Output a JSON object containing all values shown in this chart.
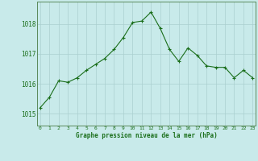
{
  "x": [
    0,
    1,
    2,
    3,
    4,
    5,
    6,
    7,
    8,
    9,
    10,
    11,
    12,
    13,
    14,
    15,
    16,
    17,
    18,
    19,
    20,
    21,
    22,
    23
  ],
  "y": [
    1015.2,
    1015.55,
    1016.1,
    1016.05,
    1016.2,
    1016.45,
    1016.65,
    1016.85,
    1017.15,
    1017.55,
    1018.05,
    1018.1,
    1018.4,
    1017.85,
    1017.15,
    1016.75,
    1017.2,
    1016.95,
    1016.6,
    1016.55,
    1016.55,
    1016.2,
    1016.45,
    1016.2
  ],
  "line_color": "#1a6e1a",
  "marker": "+",
  "marker_size": 3,
  "marker_lw": 0.8,
  "background_color": "#c8eaea",
  "grid_color": "#aacfcf",
  "xlabel": "Graphe pression niveau de la mer (hPa)",
  "xlabel_color": "#1a6e1a",
  "tick_color": "#1a6e1a",
  "spine_color": "#5a8a5a",
  "ylabel_ticks": [
    1015,
    1016,
    1017,
    1018
  ],
  "xlim": [
    -0.3,
    23.3
  ],
  "ylim": [
    1014.6,
    1018.75
  ],
  "line_width": 0.8
}
